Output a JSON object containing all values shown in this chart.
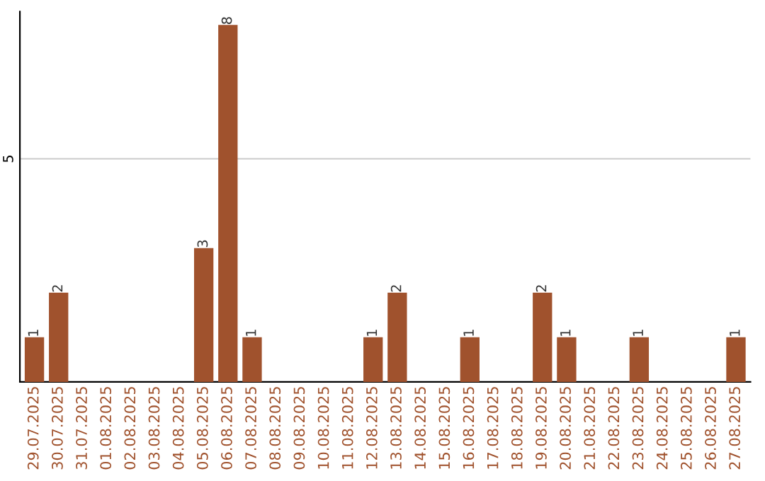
{
  "chart_data": {
    "type": "bar",
    "categories": [
      "29.07.2025",
      "30.07.2025",
      "31.07.2025",
      "01.08.2025",
      "02.08.2025",
      "03.08.2025",
      "04.08.2025",
      "05.08.2025",
      "06.08.2025",
      "07.08.2025",
      "08.08.2025",
      "09.08.2025",
      "10.08.2025",
      "11.08.2025",
      "12.08.2025",
      "13.08.2025",
      "14.08.2025",
      "15.08.2025",
      "16.08.2025",
      "17.08.2025",
      "18.08.2025",
      "19.08.2025",
      "20.08.2025",
      "21.08.2025",
      "22.08.2025",
      "23.08.2025",
      "24.08.2025",
      "25.08.2025",
      "26.08.2025",
      "27.08.2025"
    ],
    "values": [
      1,
      2,
      0,
      0,
      0,
      0,
      0,
      3,
      8,
      1,
      0,
      0,
      0,
      0,
      1,
      2,
      0,
      0,
      1,
      0,
      0,
      2,
      1,
      0,
      0,
      1,
      0,
      0,
      0,
      1
    ],
    "value_labels": [
      "1",
      "2",
      null,
      null,
      null,
      null,
      null,
      "3",
      "8",
      "1",
      null,
      null,
      null,
      null,
      "1",
      "2",
      null,
      null,
      "1",
      null,
      null,
      "2",
      "1",
      null,
      null,
      "1",
      null,
      null,
      null,
      "1"
    ],
    "color": "#a0522d",
    "ylim": [
      0,
      8.3
    ],
    "yticks": [
      5
    ],
    "grid": "y"
  }
}
